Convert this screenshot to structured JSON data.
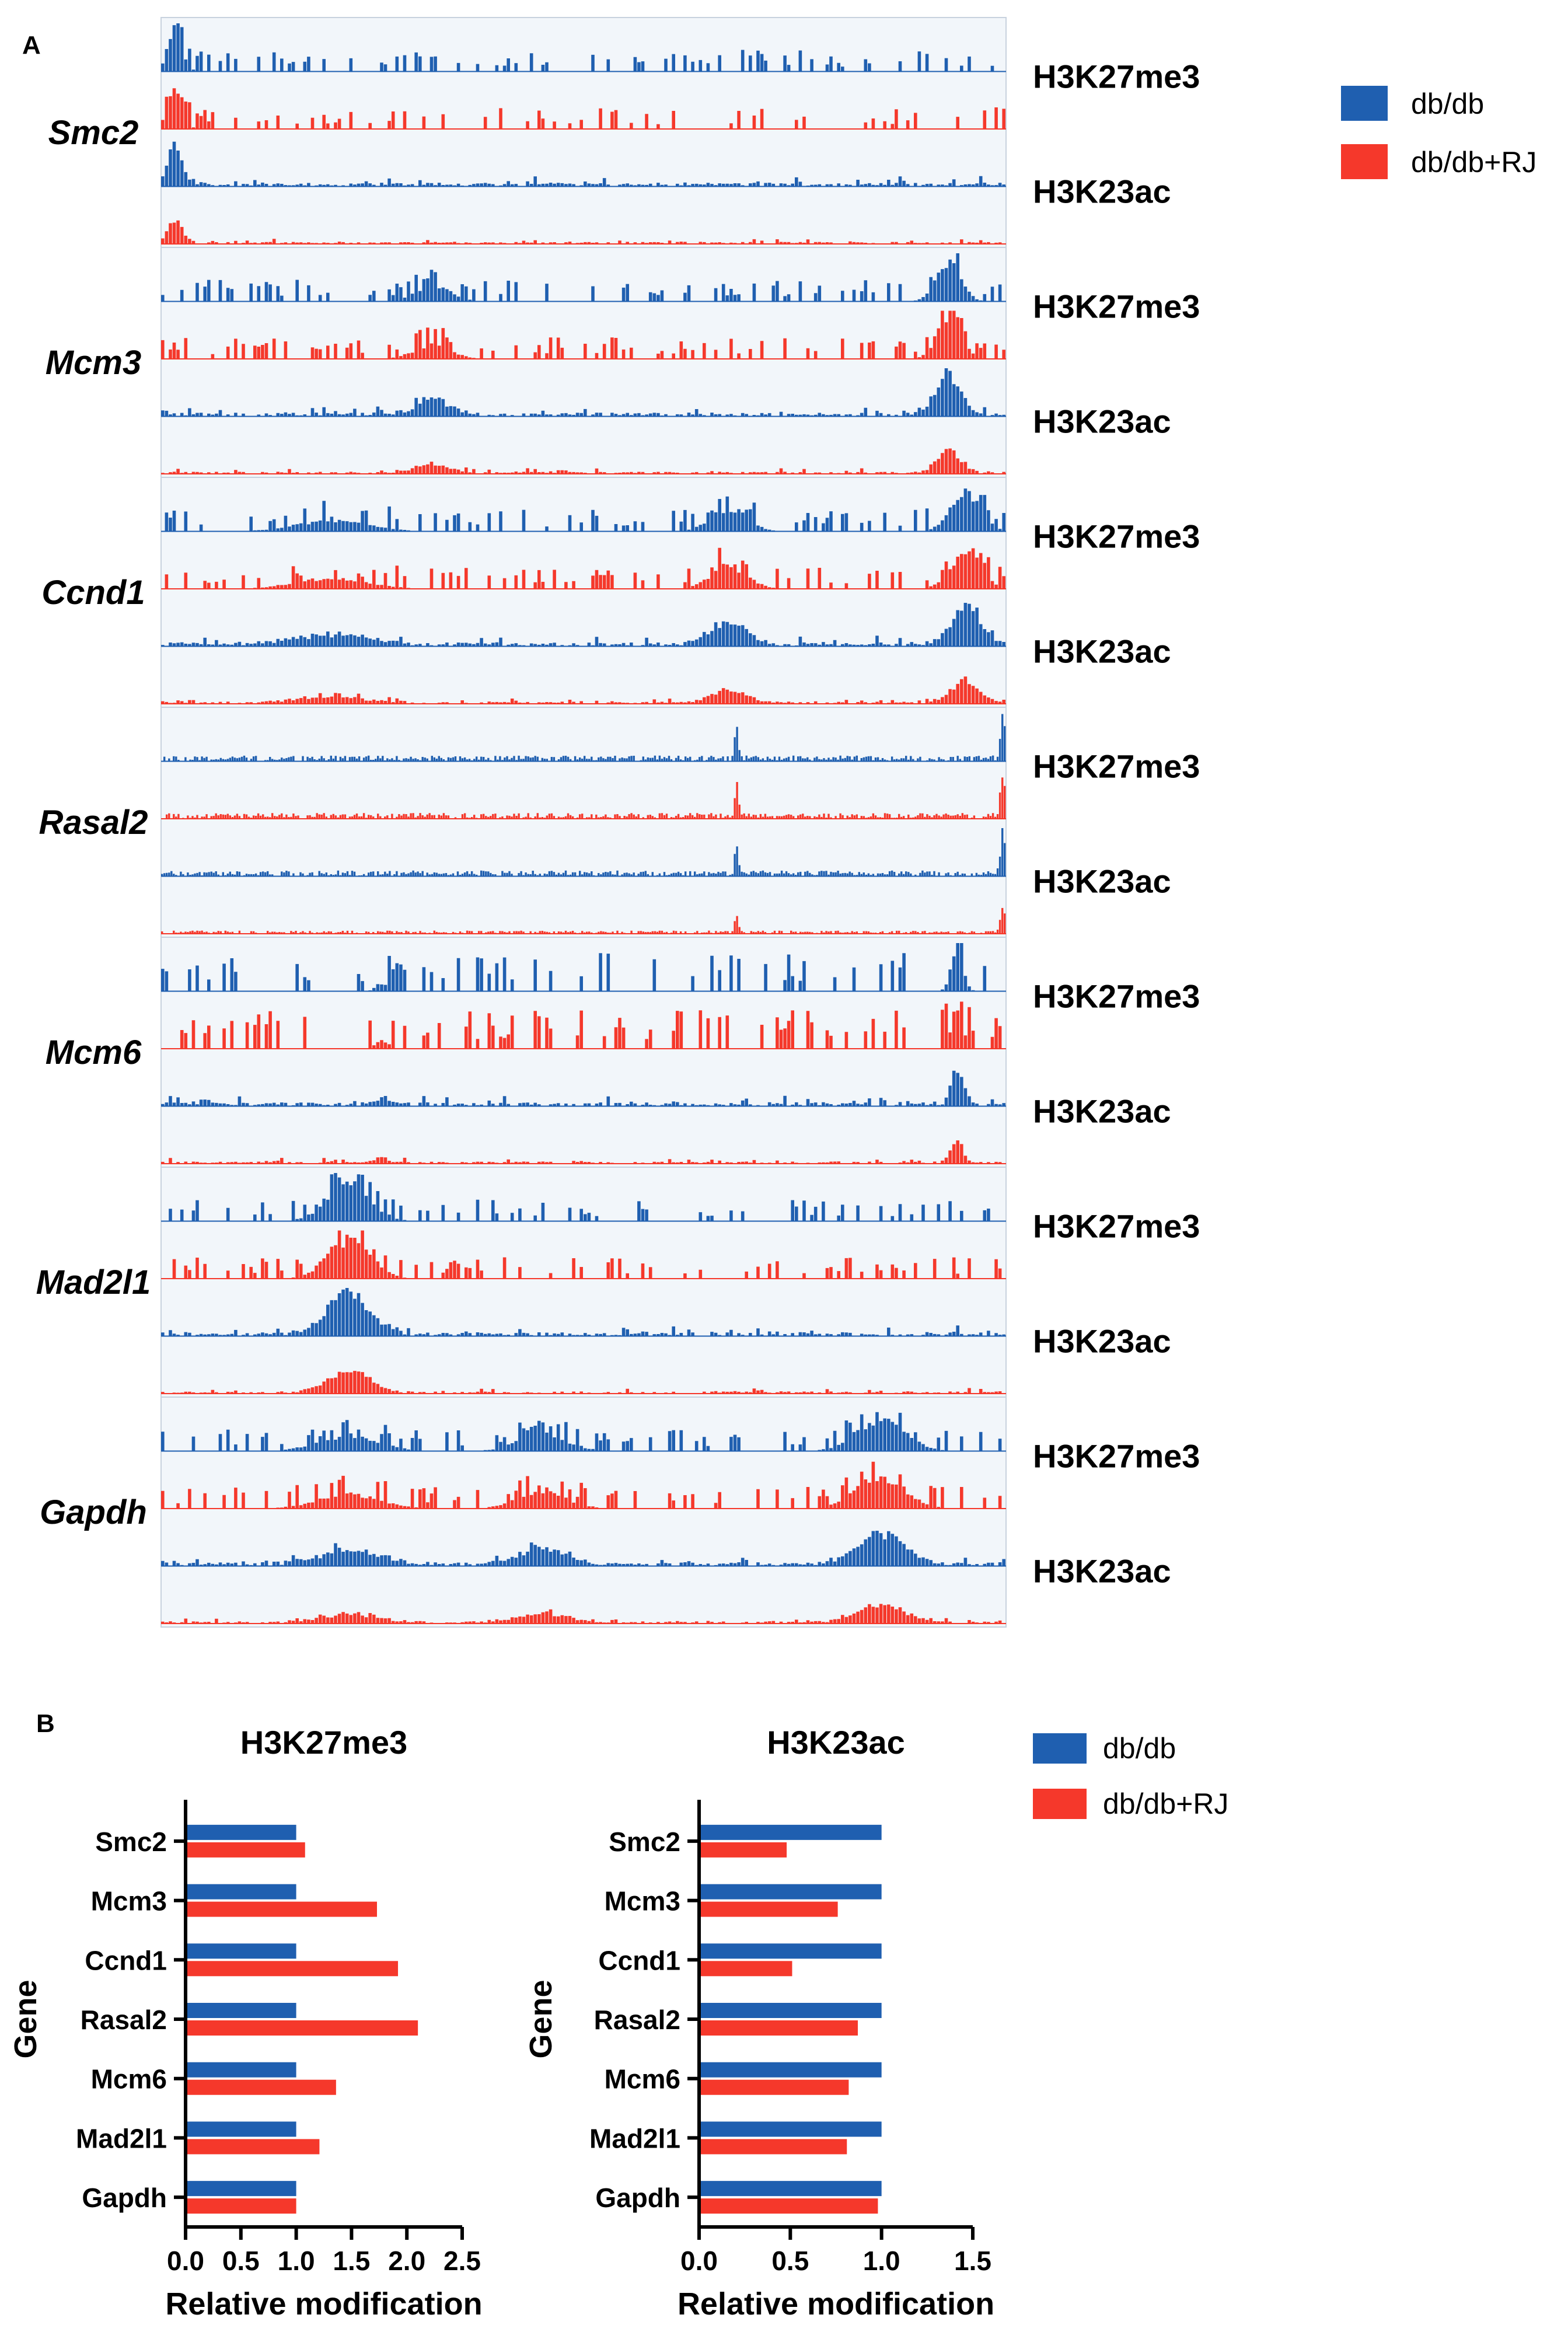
{
  "colors": {
    "dbdb": "#1f5fb0",
    "dbdb_rj": "#f5382b",
    "track_bg": "#f2f6fa",
    "track_border": "#c8d2de"
  },
  "panel_labels": {
    "a": "A",
    "b": "B"
  },
  "legend_a": {
    "dbdb": "db/db",
    "dbdb_rj": "db/db+RJ"
  },
  "legend_b": {
    "dbdb": "db/db",
    "dbdb_rj": "db/db+RJ"
  },
  "panel_a": {
    "genes": [
      {
        "name": "Smc2",
        "mark1": "H3K27me3",
        "mark2": "H3K23ac",
        "pattern": "sparse-left"
      },
      {
        "name": "Mcm3",
        "mark1": "H3K27me3",
        "mark2": "H3K23ac",
        "pattern": "sparse-right"
      },
      {
        "name": "Ccnd1",
        "mark1": "H3K27me3",
        "mark2": "H3K23ac",
        "pattern": "dense-broad"
      },
      {
        "name": "Rasal2",
        "mark1": "H3K27me3",
        "mark2": "H3K23ac",
        "pattern": "fine-noise"
      },
      {
        "name": "Mcm6",
        "mark1": "H3K27me3",
        "mark2": "H3K23ac",
        "pattern": "spiky"
      },
      {
        "name": "Mad2l1",
        "mark1": "H3K27me3",
        "mark2": "H3K23ac",
        "pattern": "left-peak"
      },
      {
        "name": "Gapdh",
        "mark1": "H3K27me3",
        "mark2": "H3K23ac",
        "pattern": "broad-blocks"
      }
    ]
  },
  "chart_data": [
    {
      "type": "bar",
      "orientation": "horizontal",
      "title": "H3K27me3",
      "xlabel": "Relative modification",
      "ylabel": "Gene",
      "categories": [
        "Smc2",
        "Mcm3",
        "Ccnd1",
        "Rasal2",
        "Mcm6",
        "Mad2l1",
        "Gapdh"
      ],
      "xlim": [
        0,
        2.5
      ],
      "xticks": [
        "0.0",
        "0.5",
        "1.0",
        "1.5",
        "2.0",
        "2.5"
      ],
      "series": [
        {
          "name": "db/db",
          "color": "#1f5fb0",
          "values": [
            1.0,
            1.0,
            1.0,
            1.0,
            1.0,
            1.0,
            1.0
          ]
        },
        {
          "name": "db/db+RJ",
          "color": "#f5382b",
          "values": [
            1.08,
            1.73,
            1.92,
            2.1,
            1.36,
            1.21,
            1.0
          ]
        }
      ]
    },
    {
      "type": "bar",
      "orientation": "horizontal",
      "title": "H3K23ac",
      "xlabel": "Relative modification",
      "ylabel": "Gene",
      "categories": [
        "Smc2",
        "Mcm3",
        "Ccnd1",
        "Rasal2",
        "Mcm6",
        "Mad2l1",
        "Gapdh"
      ],
      "xlim": [
        0,
        1.5
      ],
      "xticks": [
        "0.0",
        "0.5",
        "1.0",
        "1.5"
      ],
      "series": [
        {
          "name": "db/db",
          "color": "#1f5fb0",
          "values": [
            1.0,
            1.0,
            1.0,
            1.0,
            1.0,
            1.0,
            1.0
          ]
        },
        {
          "name": "db/db+RJ",
          "color": "#f5382b",
          "values": [
            0.48,
            0.76,
            0.51,
            0.87,
            0.82,
            0.81,
            0.98
          ]
        }
      ]
    }
  ]
}
